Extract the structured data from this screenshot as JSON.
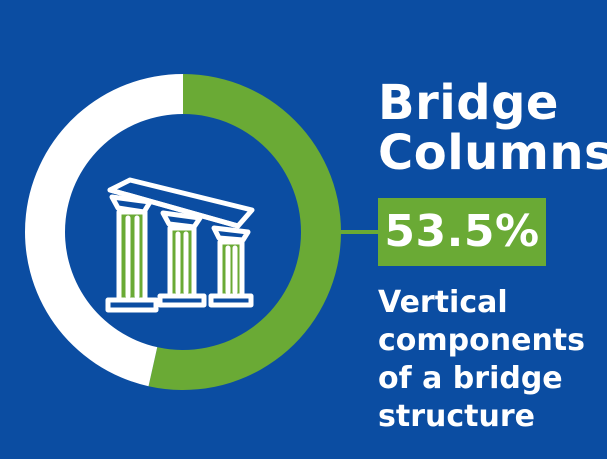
{
  "chart_data": {
    "type": "pie",
    "style": "donut",
    "title_lines": [
      "Bridge",
      "Columns"
    ],
    "value_label": "53.5%",
    "slices": [
      {
        "value": 53.5,
        "color": "#6aaa35"
      },
      {
        "value": 46.5,
        "color": "#ffffff"
      }
    ],
    "description_lines": [
      "Vertical",
      "components",
      "of a bridge",
      "structure"
    ]
  },
  "icon": "bridge-columns-icon",
  "colors": {
    "background": "#0b4da2",
    "accent": "#6aaa35",
    "ring": "#ffffff"
  }
}
